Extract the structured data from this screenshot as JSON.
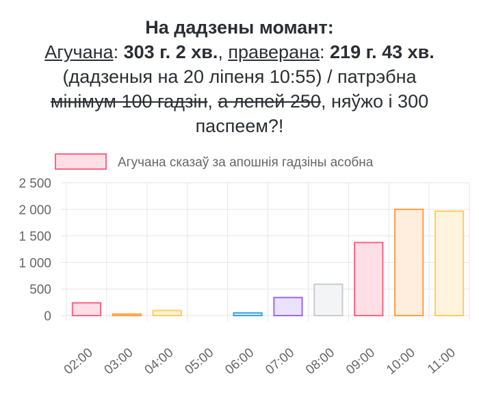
{
  "header": {
    "title": "На дадзены момант:",
    "line2": {
      "label1": "Агучана",
      "sep1": ": ",
      "value1": "303 г. 2 хв.",
      "comma": ", ",
      "label2": "праверана",
      "sep2": ": ",
      "value2": "219 г. 43 хв."
    },
    "line3": "(дадзеныя на 20 ліпеня 10:55) / патрэбна",
    "line4": {
      "strike1": "мінімум 100 гадзін",
      "comma1": ", ",
      "strike2": "а лепей 250",
      "rest": ", няўжо і 300"
    },
    "line5": "паспеем?!"
  },
  "chart_data": {
    "type": "bar",
    "categories": [
      "02:00",
      "03:00",
      "04:00",
      "05:00",
      "06:00",
      "07:00",
      "08:00",
      "09:00",
      "10:00",
      "11:00"
    ],
    "series": [
      {
        "name": "Агучана сказаў за апошнія гадзіны асобна",
        "values": [
          240,
          30,
          95,
          0,
          50,
          340,
          590,
          1375,
          2000,
          1965
        ]
      }
    ],
    "ylim": [
      0,
      2500
    ],
    "yticks": [
      0,
      500,
      1000,
      1500,
      2000,
      2500
    ],
    "ytick_labels": [
      "0",
      "500",
      "1 000",
      "1 500",
      "2 000",
      "2 500"
    ],
    "grid": true,
    "legend_position": "top",
    "bar_fill_colors": [
      "#ffdfe5",
      "#ffeedd",
      "#fff4dd",
      "#ddf3f3",
      "#ddeefa",
      "#ebe2fd",
      "#f3f4f5",
      "#ffdfe5",
      "#ffeedd",
      "#fff4dd"
    ],
    "bar_border_colors": [
      "#ff6384",
      "#ff9f40",
      "#ffcd56",
      "#4bc0c0",
      "#36a2eb",
      "#9966ff",
      "#c9cbcf",
      "#ff6384",
      "#ff9f40",
      "#ffcd56"
    ],
    "legend_fill_color": "#ffdfe5",
    "legend_border_color": "#ff6384",
    "grid_color": "#e6e6e6",
    "text_color": "#666666"
  }
}
